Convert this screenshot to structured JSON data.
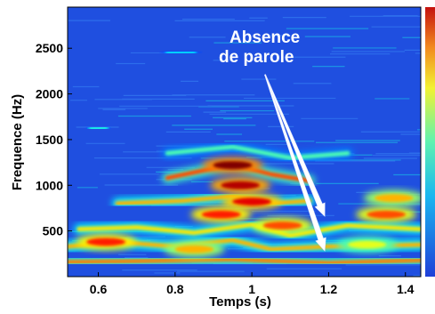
{
  "chart_data": {
    "type": "heatmap",
    "xlabel": "Temps (s)",
    "ylabel": "Frequence (Hz)",
    "xlim": [
      0.52,
      1.44
    ],
    "ylim": [
      0,
      2950
    ],
    "xticks": [
      0.6,
      0.8,
      1,
      1.2,
      1.4
    ],
    "xtick_labels": [
      "0.6",
      "0.8",
      "1",
      "1.2",
      "1.4"
    ],
    "yticks": [
      500,
      1000,
      1500,
      2000,
      2500
    ],
    "ytick_labels": [
      "500",
      "1000",
      "1500",
      "2000",
      "2500"
    ],
    "colormap": "jet",
    "colors": {
      "background": "#1f4fe0",
      "low": "#2a6cf0",
      "mid": "#19d6d9",
      "high_mid": "#f2f233",
      "high": "#d11a10"
    },
    "annotation": {
      "lines": [
        "Absence",
        "de parole"
      ],
      "color": "#ffffff",
      "arrow_targets": [
        [
          1.19,
          660
        ],
        [
          1.19,
          280
        ]
      ]
    },
    "formants": [
      {
        "name": "",
        "points": [
          [
            0.52,
            160
          ],
          [
            0.7,
            170
          ],
          [
            0.95,
            190
          ],
          [
            1.2,
            150
          ],
          [
            1.44,
            180
          ]
        ],
        "intensity": 0.75
      },
      {
        "name": "",
        "points": [
          [
            0.52,
            330
          ],
          [
            0.65,
            380
          ],
          [
            0.8,
            330
          ],
          [
            0.95,
            400
          ],
          [
            1.05,
            300
          ],
          [
            1.2,
            330
          ],
          [
            1.44,
            350
          ]
        ],
        "intensity": 0.7
      },
      {
        "name": "",
        "points": [
          [
            0.55,
            520
          ],
          [
            0.7,
            540
          ],
          [
            0.85,
            480
          ],
          [
            1.0,
            570
          ],
          [
            1.1,
            450
          ],
          [
            1.25,
            560
          ],
          [
            1.44,
            520
          ]
        ],
        "intensity": 0.65
      },
      {
        "name": "",
        "points": [
          [
            0.65,
            800
          ],
          [
            0.82,
            830
          ],
          [
            0.95,
            880
          ],
          [
            1.05,
            800
          ],
          [
            1.15,
            830
          ]
        ],
        "intensity": 0.7
      },
      {
        "name": "",
        "points": [
          [
            0.78,
            1080
          ],
          [
            0.95,
            1230
          ],
          [
            1.05,
            1120
          ],
          [
            1.15,
            1050
          ]
        ],
        "intensity": 0.8
      },
      {
        "name": "",
        "points": [
          [
            0.78,
            1350
          ],
          [
            0.95,
            1420
          ],
          [
            1.1,
            1300
          ],
          [
            1.25,
            1350
          ]
        ],
        "intensity": 0.45
      },
      {
        "name": "",
        "points": [
          [
            0.58,
            1620
          ],
          [
            0.62,
            1630
          ]
        ],
        "intensity": 0.4
      },
      {
        "name": "",
        "points": [
          [
            0.78,
            2450
          ],
          [
            0.85,
            2460
          ]
        ],
        "intensity": 0.35
      }
    ],
    "hotspots": [
      {
        "x": 0.95,
        "y": 1220,
        "value": 1.0
      },
      {
        "x": 0.97,
        "y": 1000,
        "value": 0.95
      },
      {
        "x": 1.0,
        "y": 820,
        "value": 0.9
      },
      {
        "x": 0.92,
        "y": 680,
        "value": 0.85
      },
      {
        "x": 1.08,
        "y": 560,
        "value": 0.8
      },
      {
        "x": 0.62,
        "y": 380,
        "value": 0.85
      },
      {
        "x": 1.35,
        "y": 680,
        "value": 0.8
      },
      {
        "x": 1.37,
        "y": 860,
        "value": 0.7
      },
      {
        "x": 0.85,
        "y": 300,
        "value": 0.7
      },
      {
        "x": 1.3,
        "y": 350,
        "value": 0.6
      }
    ]
  }
}
